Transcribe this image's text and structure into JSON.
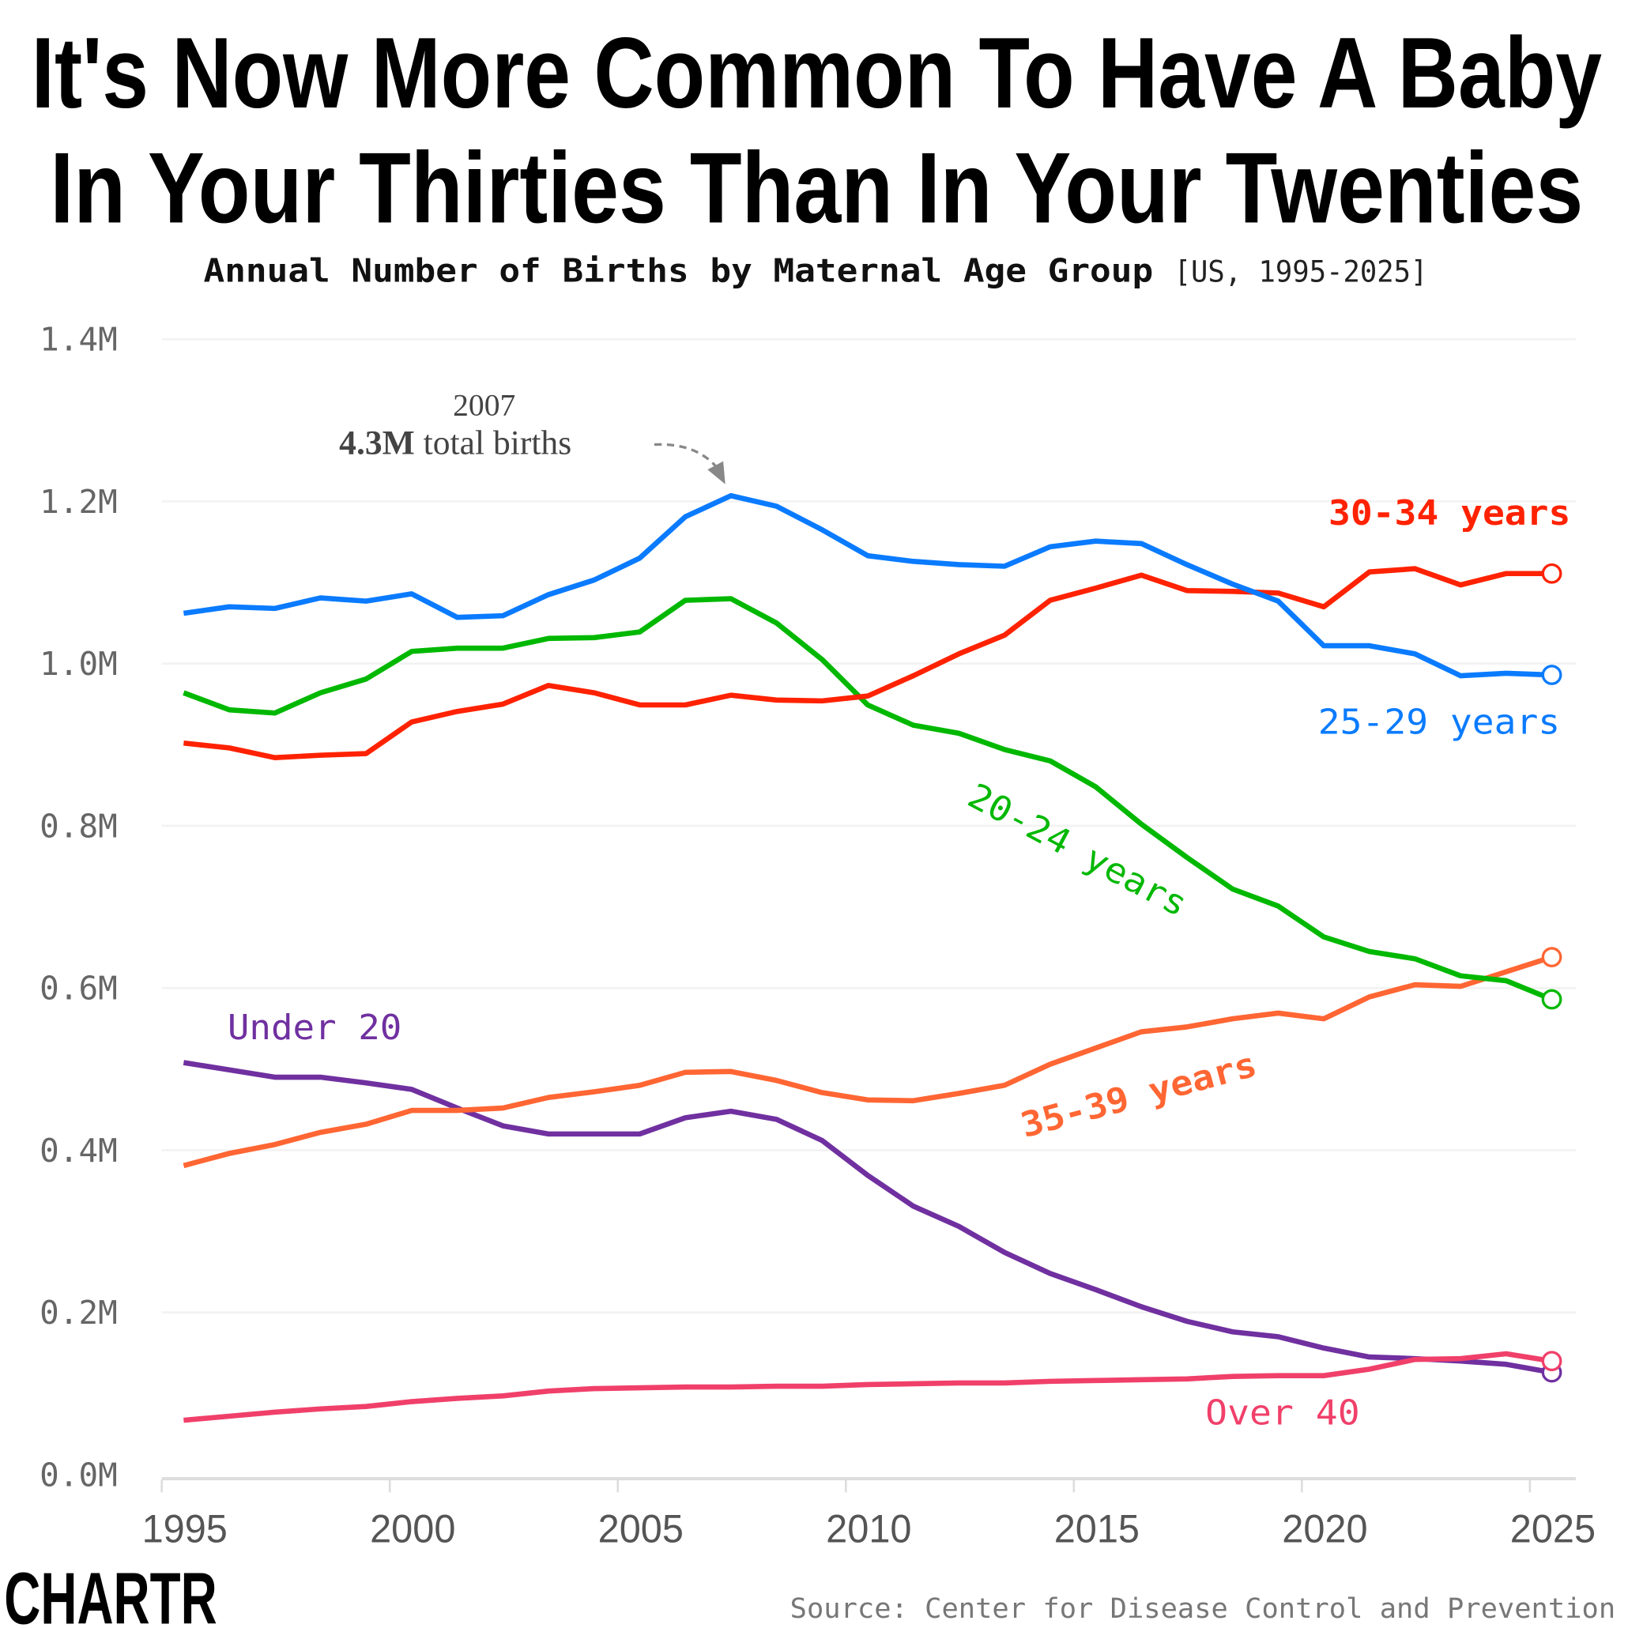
{
  "title_line1": "It's Now More Common To Have A Baby",
  "title_line2": "In Your Thirties Than In Your Twenties",
  "subtitle_bold": "Annual Number of Births by Maternal Age Group",
  "subtitle_bracket": "[US, 1995-2025]",
  "annotation": {
    "year": "2007",
    "value": "4.3M",
    "text": " total births"
  },
  "source": "Source: Center for Disease Control and Prevention",
  "logo": "CHARTR",
  "chart_data": {
    "type": "line",
    "title": "Annual Number of Births by Maternal Age Group",
    "xlim": [
      1995,
      2025
    ],
    "ylim": [
      0,
      1.4
    ],
    "y_unit": "M",
    "x_ticks": [
      "1995",
      "2000",
      "2005",
      "2010",
      "2015",
      "2020",
      "2025"
    ],
    "y_ticks": [
      "0.0M",
      "0.2M",
      "0.4M",
      "0.6M",
      "0.8M",
      "1.0M",
      "1.2M",
      "1.4M"
    ],
    "grid": "horizontal",
    "x": [
      1995,
      1996,
      1997,
      1998,
      1999,
      2000,
      2001,
      2002,
      2003,
      2004,
      2005,
      2006,
      2007,
      2008,
      2009,
      2010,
      2011,
      2012,
      2013,
      2014,
      2015,
      2016,
      2017,
      2018,
      2019,
      2020,
      2021,
      2022,
      2023,
      2024,
      2025
    ],
    "series": [
      {
        "name": "Under 20",
        "color": "#7030a0",
        "values": [
          0.508,
          0.499,
          0.49,
          0.49,
          0.483,
          0.475,
          0.452,
          0.43,
          0.42,
          0.42,
          0.42,
          0.44,
          0.448,
          0.438,
          0.412,
          0.369,
          0.331,
          0.306,
          0.274,
          0.248,
          0.228,
          0.207,
          0.189,
          0.176,
          0.17,
          0.156,
          0.145,
          0.143,
          0.14,
          0.136,
          0.126
        ]
      },
      {
        "name": "Over 40",
        "color": "#f0406a",
        "values": [
          0.067,
          0.072,
          0.077,
          0.081,
          0.084,
          0.09,
          0.094,
          0.097,
          0.103,
          0.106,
          0.107,
          0.108,
          0.108,
          0.109,
          0.109,
          0.111,
          0.112,
          0.113,
          0.113,
          0.115,
          0.116,
          0.117,
          0.118,
          0.121,
          0.122,
          0.122,
          0.13,
          0.142,
          0.143,
          0.149,
          0.14
        ]
      },
      {
        "name": "35-39 years",
        "color": "#ff6633",
        "values": [
          0.381,
          0.396,
          0.407,
          0.422,
          0.432,
          0.449,
          0.449,
          0.452,
          0.465,
          0.472,
          0.48,
          0.496,
          0.497,
          0.486,
          0.471,
          0.462,
          0.461,
          0.47,
          0.48,
          0.506,
          0.526,
          0.546,
          0.552,
          0.562,
          0.569,
          0.562,
          0.589,
          0.604,
          0.602,
          0.62,
          0.638
        ]
      },
      {
        "name": "20-24 years",
        "color": "#00b800",
        "values": [
          0.964,
          0.943,
          0.939,
          0.964,
          0.981,
          1.015,
          1.019,
          1.019,
          1.031,
          1.032,
          1.039,
          1.078,
          1.08,
          1.05,
          1.005,
          0.949,
          0.924,
          0.914,
          0.894,
          0.88,
          0.848,
          0.802,
          0.761,
          0.722,
          0.701,
          0.663,
          0.645,
          0.636,
          0.615,
          0.609,
          0.586
        ]
      },
      {
        "name": "30-34 years",
        "color": "#ff2200",
        "values": [
          0.902,
          0.896,
          0.884,
          0.887,
          0.889,
          0.928,
          0.941,
          0.95,
          0.973,
          0.964,
          0.949,
          0.949,
          0.961,
          0.955,
          0.954,
          0.96,
          0.985,
          1.012,
          1.035,
          1.078,
          1.093,
          1.109,
          1.09,
          1.089,
          1.087,
          1.07,
          1.113,
          1.117,
          1.097,
          1.111,
          1.111
        ]
      },
      {
        "name": "25-29 years",
        "color": "#0a7bff",
        "values": [
          1.062,
          1.07,
          1.068,
          1.081,
          1.077,
          1.086,
          1.057,
          1.059,
          1.085,
          1.103,
          1.13,
          1.181,
          1.207,
          1.194,
          1.165,
          1.133,
          1.126,
          1.122,
          1.12,
          1.144,
          1.151,
          1.148,
          1.122,
          1.098,
          1.077,
          1.022,
          1.022,
          1.012,
          0.985,
          0.988,
          0.986
        ]
      }
    ]
  }
}
